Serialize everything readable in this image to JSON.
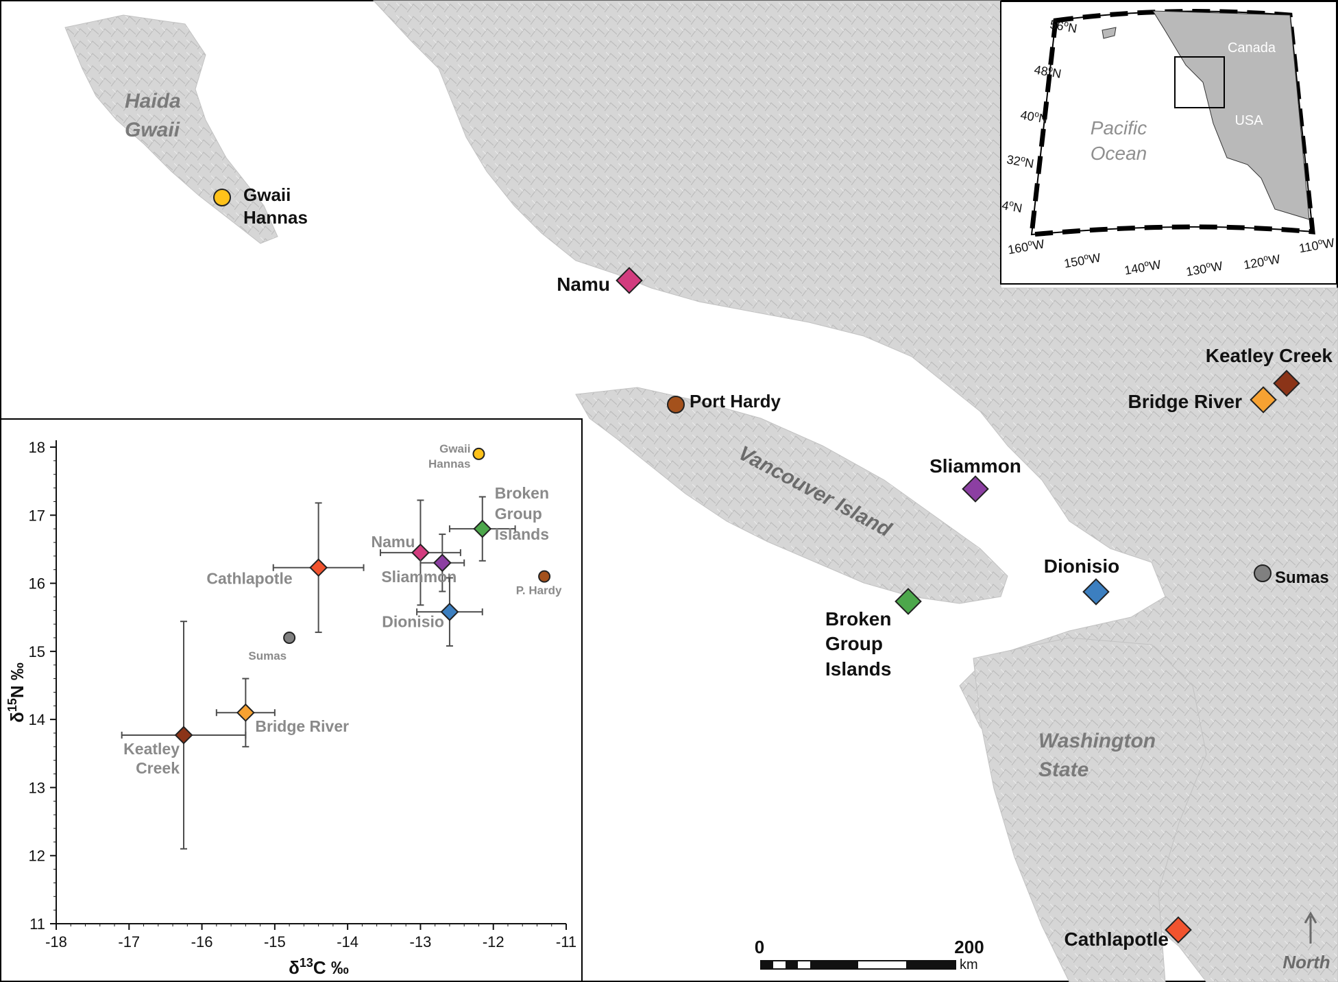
{
  "map": {
    "regions": {
      "haida_gwaii_1": "Haida",
      "haida_gwaii_2": "Gwaii",
      "vancouver_island": "Vancouver Island",
      "washington_1": "Washington",
      "washington_2": "State"
    },
    "sites": [
      {
        "label": [
          "Gwaii",
          "Hannas"
        ],
        "marker": "circle",
        "color": "#FFC21A"
      },
      {
        "label": [
          "Namu"
        ],
        "marker": "diamond",
        "color": "#D23C7E"
      },
      {
        "label": [
          "Port Hardy"
        ],
        "marker": "circle",
        "color": "#A4511C"
      },
      {
        "label": [
          "Keatley Creek"
        ],
        "marker": "diamond",
        "color": "#8B3418"
      },
      {
        "label": [
          "Bridge River"
        ],
        "marker": "diamond",
        "color": "#F7A232"
      },
      {
        "label": [
          "Sliammon"
        ],
        "marker": "diamond",
        "color": "#8C3FA2"
      },
      {
        "label": [
          "Dionisio"
        ],
        "marker": "diamond",
        "color": "#3C7FC0"
      },
      {
        "label": [
          "Sumas"
        ],
        "marker": "circle",
        "color": "#808080"
      },
      {
        "label": [
          "Broken",
          "Group",
          "Islands"
        ],
        "marker": "diamond",
        "color": "#4CA74B"
      },
      {
        "label": [
          "Cathlapotle"
        ],
        "marker": "diamond",
        "color": "#F1532E"
      }
    ],
    "scale_bar": {
      "start": "0",
      "end": "200",
      "unit": "km"
    },
    "north_label": "North"
  },
  "inset": {
    "ocean_1": "Pacific",
    "ocean_2": "Ocean",
    "canada": "Canada",
    "usa": "USA",
    "lat_labels": [
      "56",
      "48",
      "40",
      "32",
      "4"
    ],
    "lon_labels": [
      "160",
      "150",
      "140",
      "130",
      "120",
      "110"
    ],
    "lat_suffix": "N",
    "lon_suffix": "W"
  },
  "chart_data": {
    "type": "scatter",
    "x_label_prefix": "δ",
    "x_label_sup": "13",
    "x_label_suffix": "C ‰",
    "y_label_prefix": "δ",
    "y_label_sup": "15",
    "y_label_suffix": "N ‰",
    "xlim": [
      -18,
      -11
    ],
    "ylim": [
      11,
      18
    ],
    "x_ticks": [
      -18,
      -17,
      -16,
      -15,
      -14,
      -13,
      -12,
      -11
    ],
    "y_ticks": [
      11,
      12,
      13,
      14,
      15,
      16,
      17,
      18
    ],
    "points": [
      {
        "label": [
          "Gwaii",
          "Hannas"
        ],
        "x": -12.2,
        "y": 17.9,
        "marker": "circle",
        "color": "#FFC21A"
      },
      {
        "label": [
          "Broken",
          "Group",
          "Islands"
        ],
        "x": -12.15,
        "y": 16.8,
        "xerr": 0.45,
        "yerr": 0.47,
        "marker": "diamond",
        "color": "#4CA74B"
      },
      {
        "label": [
          "Namu"
        ],
        "x": -13.0,
        "y": 16.45,
        "xerr": 0.55,
        "yerr": 0.77,
        "marker": "diamond",
        "color": "#D23C7E"
      },
      {
        "label": [
          "Sliammon"
        ],
        "x": -12.7,
        "y": 16.3,
        "xerr": 0.3,
        "yerr": 0.42,
        "marker": "diamond",
        "color": "#8C3FA2"
      },
      {
        "label": [
          "Cathlapotle"
        ],
        "x": -14.4,
        "y": 16.23,
        "xerr": 0.62,
        "yerr": 0.95,
        "marker": "diamond",
        "color": "#F1532E"
      },
      {
        "label": [
          "P. Hardy"
        ],
        "x": -11.3,
        "y": 16.1,
        "marker": "circle",
        "color": "#A4511C"
      },
      {
        "label": [
          "Dionisio"
        ],
        "x": -12.6,
        "y": 15.58,
        "xerr": 0.45,
        "yerr": 0.5,
        "marker": "diamond",
        "color": "#3C7FC0"
      },
      {
        "label": [
          "Sumas"
        ],
        "x": -14.8,
        "y": 15.2,
        "marker": "circle",
        "color": "#808080"
      },
      {
        "label": [
          "Bridge River"
        ],
        "x": -15.4,
        "y": 14.1,
        "xerr": 0.4,
        "yerr": 0.5,
        "marker": "diamond",
        "color": "#F7A232"
      },
      {
        "label": [
          "Keatley",
          "Creek"
        ],
        "x": -16.25,
        "y": 13.77,
        "xerr": 0.85,
        "yerr": 1.67,
        "marker": "diamond",
        "color": "#8B3418"
      }
    ]
  }
}
